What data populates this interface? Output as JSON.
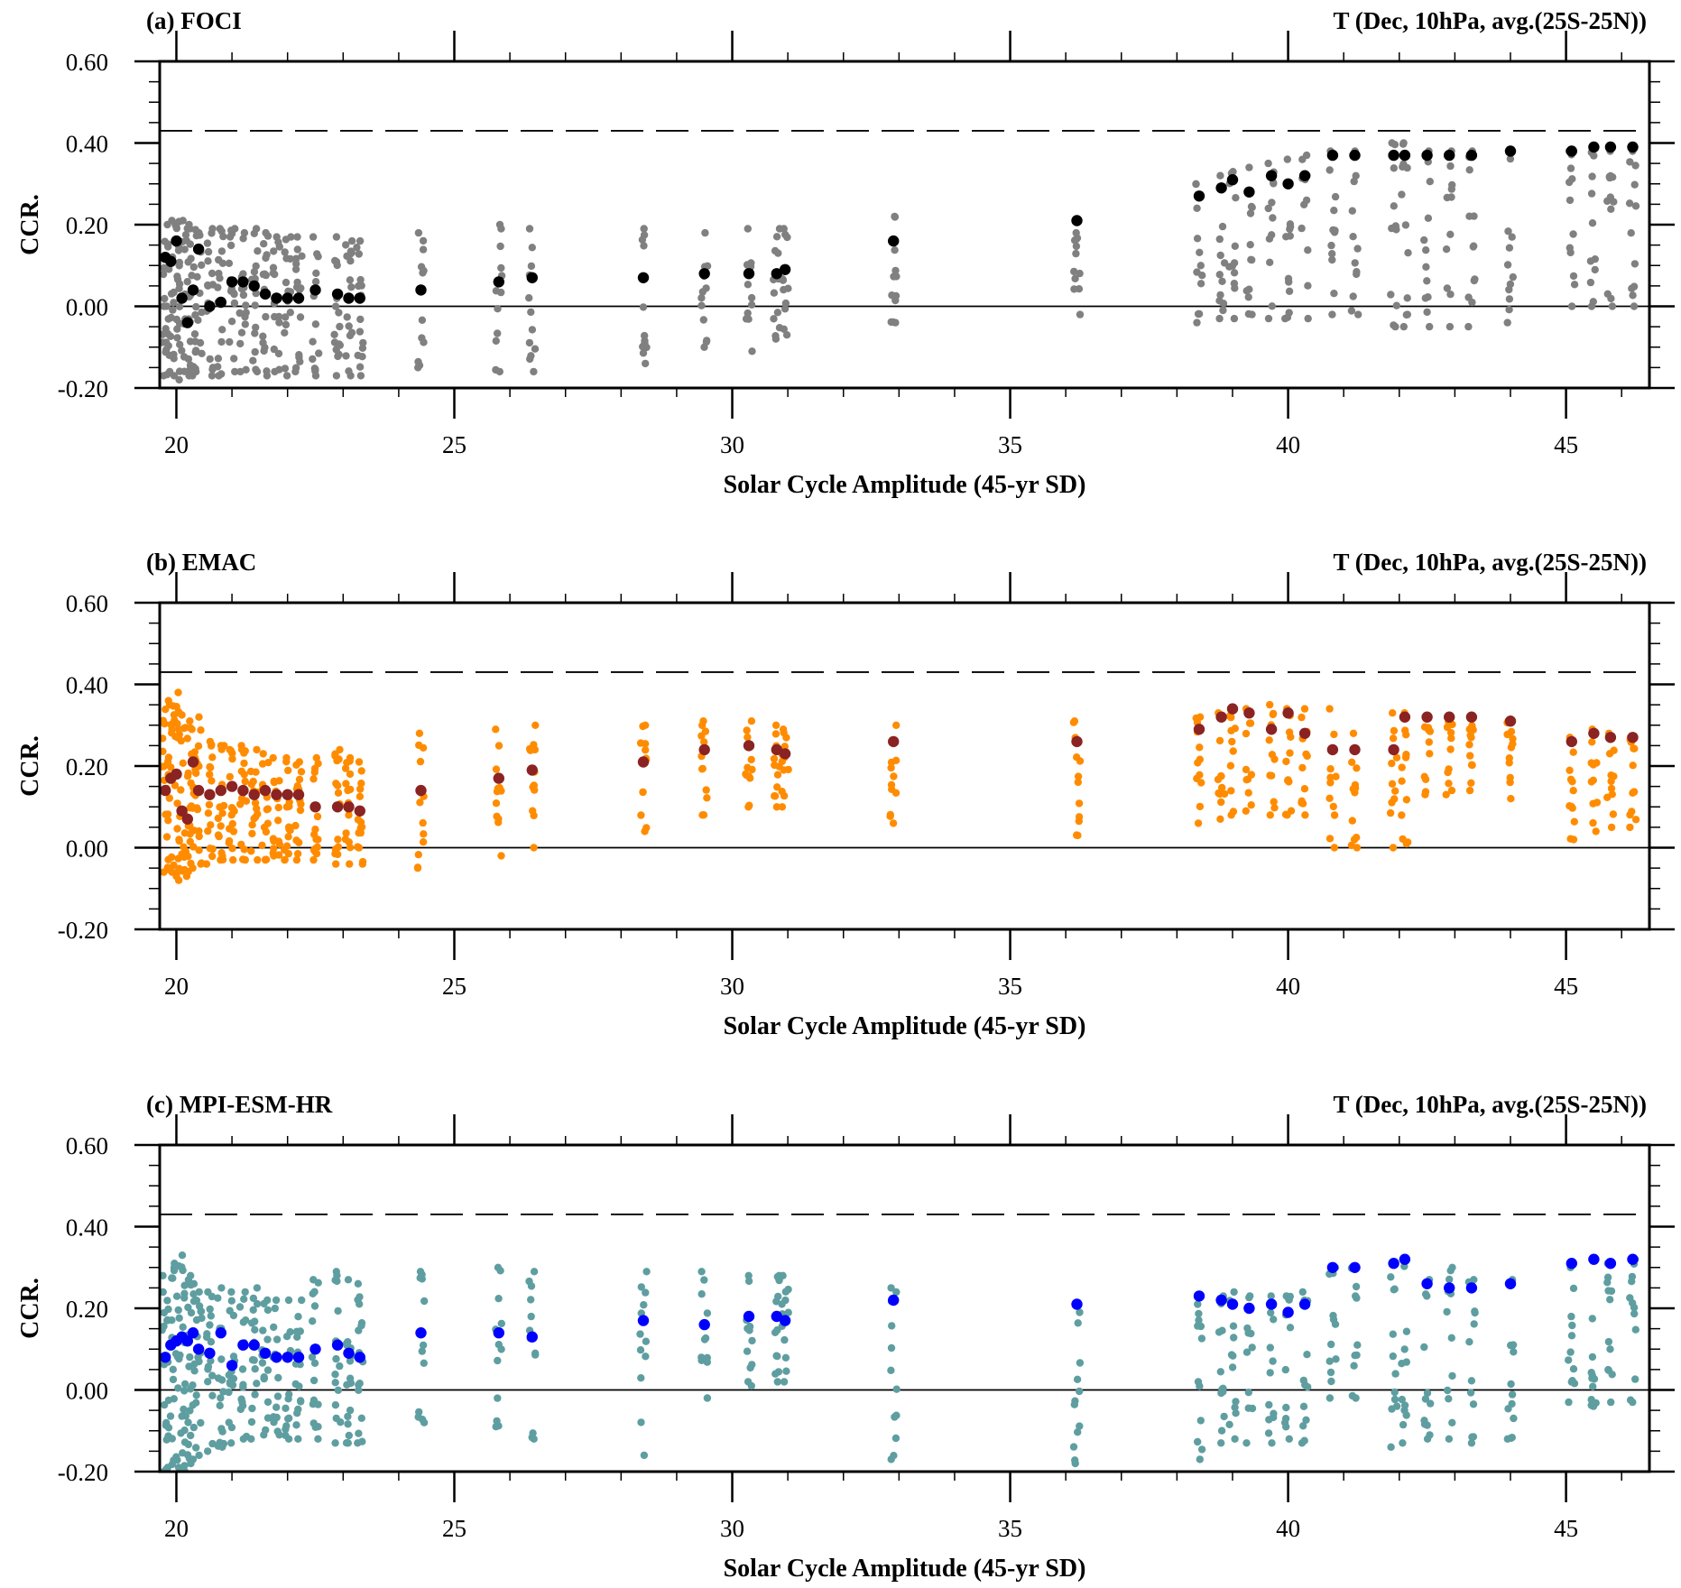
{
  "figure": {
    "shared_xlabel": "Solar Cycle Amplitude (45-yr SD)",
    "shared_ylabel": "CCR.",
    "variable_label": "T (Dec, 10hPa, avg.(25S-25N))",
    "significance_level": 0.43
  },
  "chart_data": [
    {
      "type": "scatter",
      "panel_label": "(a) FOCI",
      "title_right": "T (Dec, 10hPa, avg.(25S-25N))",
      "xlabel": "Solar Cycle Amplitude (45-yr SD)",
      "ylabel": "CCR.",
      "xlim": [
        19.7,
        46.5
      ],
      "ylim": [
        -0.2,
        0.6
      ],
      "xticks": [
        "20",
        "25",
        "30",
        "35",
        "40",
        "45"
      ],
      "yticks": [
        "-0.20",
        "0.00",
        "0.20",
        "0.40",
        "0.60"
      ],
      "significance_level": 0.43,
      "zero_line": true,
      "colors": {
        "members": "#808080",
        "mean": "#000000"
      },
      "members": {
        "x": [
          19.8,
          19.9,
          20.0,
          20.1,
          20.2,
          20.3,
          20.4,
          20.6,
          20.8,
          21.0,
          21.2,
          21.4,
          21.6,
          21.8,
          22.0,
          22.2,
          22.5,
          22.9,
          23.1,
          23.3,
          24.4,
          25.8,
          26.4,
          28.4,
          29.5,
          30.3,
          30.8,
          30.95,
          32.9,
          36.2,
          38.4,
          38.8,
          39.0,
          39.3,
          39.7,
          40.0,
          40.3,
          40.8,
          41.2,
          41.9,
          42.1,
          42.5,
          42.9,
          43.3,
          44.0,
          45.1,
          45.5,
          45.8,
          46.2
        ],
        "spread": [
          [
            -0.17,
            0.2
          ],
          [
            -0.16,
            0.21
          ],
          [
            -0.17,
            0.2
          ],
          [
            -0.18,
            0.21
          ],
          [
            -0.17,
            0.2
          ],
          [
            -0.17,
            0.19
          ],
          [
            -0.16,
            0.18
          ],
          [
            -0.17,
            0.19
          ],
          [
            -0.17,
            0.19
          ],
          [
            -0.16,
            0.19
          ],
          [
            -0.16,
            0.18
          ],
          [
            -0.16,
            0.19
          ],
          [
            -0.17,
            0.18
          ],
          [
            -0.16,
            0.17
          ],
          [
            -0.17,
            0.17
          ],
          [
            -0.16,
            0.17
          ],
          [
            -0.17,
            0.17
          ],
          [
            -0.17,
            0.17
          ],
          [
            -0.17,
            0.16
          ],
          [
            -0.17,
            0.16
          ],
          [
            -0.15,
            0.18
          ],
          [
            -0.16,
            0.2
          ],
          [
            -0.16,
            0.19
          ],
          [
            -0.14,
            0.19
          ],
          [
            -0.1,
            0.18
          ],
          [
            -0.11,
            0.19
          ],
          [
            -0.08,
            0.19
          ],
          [
            -0.07,
            0.19
          ],
          [
            -0.04,
            0.22
          ],
          [
            -0.02,
            0.18
          ],
          [
            -0.04,
            0.3
          ],
          [
            -0.03,
            0.32
          ],
          [
            -0.03,
            0.33
          ],
          [
            -0.02,
            0.34
          ],
          [
            -0.03,
            0.35
          ],
          [
            -0.03,
            0.36
          ],
          [
            -0.03,
            0.37
          ],
          [
            -0.02,
            0.38
          ],
          [
            -0.02,
            0.38
          ],
          [
            -0.05,
            0.4
          ],
          [
            -0.05,
            0.4
          ],
          [
            -0.05,
            0.38
          ],
          [
            -0.05,
            0.38
          ],
          [
            -0.05,
            0.38
          ],
          [
            -0.04,
            0.38
          ],
          [
            0.0,
            0.38
          ],
          [
            0.0,
            0.39
          ],
          [
            0.0,
            0.38
          ],
          [
            0.0,
            0.38
          ]
        ]
      },
      "ensemble_mean": {
        "x": [
          19.8,
          19.9,
          20.0,
          20.1,
          20.2,
          20.3,
          20.4,
          20.6,
          20.8,
          21.0,
          21.2,
          21.4,
          21.6,
          21.8,
          22.0,
          22.2,
          22.5,
          22.9,
          23.1,
          23.3,
          24.4,
          25.8,
          26.4,
          28.4,
          29.5,
          30.3,
          30.8,
          30.95,
          32.9,
          36.2,
          38.4,
          38.8,
          39.0,
          39.3,
          39.7,
          40.0,
          40.3,
          40.8,
          41.2,
          41.9,
          42.1,
          42.5,
          42.9,
          43.3,
          44.0,
          45.1,
          45.5,
          45.8,
          46.2
        ],
        "y": [
          0.12,
          0.11,
          0.16,
          0.02,
          -0.04,
          0.04,
          0.14,
          0.0,
          0.01,
          0.06,
          0.06,
          0.05,
          0.03,
          0.02,
          0.02,
          0.02,
          0.04,
          0.03,
          0.02,
          0.02,
          0.04,
          0.06,
          0.07,
          0.07,
          0.08,
          0.08,
          0.08,
          0.09,
          0.16,
          0.21,
          0.27,
          0.29,
          0.31,
          0.28,
          0.32,
          0.3,
          0.32,
          0.37,
          0.37,
          0.37,
          0.37,
          0.37,
          0.37,
          0.37,
          0.38,
          0.38,
          0.39,
          0.39,
          0.39
        ]
      }
    },
    {
      "type": "scatter",
      "panel_label": "(b) EMAC",
      "title_right": "T (Dec, 10hPa, avg.(25S-25N))",
      "xlabel": "Solar Cycle Amplitude (45-yr SD)",
      "ylabel": "CCR.",
      "xlim": [
        19.7,
        46.5
      ],
      "ylim": [
        -0.2,
        0.6
      ],
      "xticks": [
        "20",
        "25",
        "30",
        "35",
        "40",
        "45"
      ],
      "yticks": [
        "-0.20",
        "0.00",
        "0.20",
        "0.40",
        "0.60"
      ],
      "significance_level": 0.43,
      "zero_line": true,
      "colors": {
        "members": "#ff8c00",
        "mean": "#8b2323"
      },
      "members": {
        "x": [
          19.8,
          19.9,
          20.0,
          20.1,
          20.2,
          20.3,
          20.4,
          20.6,
          20.8,
          21.0,
          21.2,
          21.4,
          21.6,
          21.8,
          22.0,
          22.2,
          22.5,
          22.9,
          23.1,
          23.3,
          24.4,
          25.8,
          26.4,
          28.4,
          29.5,
          30.3,
          30.8,
          30.95,
          32.9,
          36.2,
          38.4,
          38.8,
          39.0,
          39.3,
          39.7,
          40.0,
          40.3,
          40.8,
          41.2,
          41.9,
          42.1,
          42.5,
          42.9,
          43.3,
          44.0,
          45.1,
          45.5,
          45.8,
          46.2
        ],
        "spread": [
          [
            -0.06,
            0.36
          ],
          [
            -0.06,
            0.35
          ],
          [
            -0.07,
            0.38
          ],
          [
            -0.08,
            0.33
          ],
          [
            -0.07,
            0.31
          ],
          [
            -0.05,
            0.29
          ],
          [
            -0.04,
            0.32
          ],
          [
            -0.04,
            0.26
          ],
          [
            -0.03,
            0.25
          ],
          [
            -0.03,
            0.24
          ],
          [
            -0.03,
            0.25
          ],
          [
            -0.03,
            0.24
          ],
          [
            -0.03,
            0.23
          ],
          [
            -0.02,
            0.22
          ],
          [
            -0.03,
            0.22
          ],
          [
            -0.03,
            0.21
          ],
          [
            -0.03,
            0.22
          ],
          [
            -0.04,
            0.24
          ],
          [
            -0.04,
            0.22
          ],
          [
            -0.04,
            0.21
          ],
          [
            -0.05,
            0.28
          ],
          [
            -0.02,
            0.29
          ],
          [
            0.0,
            0.3
          ],
          [
            0.04,
            0.3
          ],
          [
            0.08,
            0.31
          ],
          [
            0.1,
            0.31
          ],
          [
            0.1,
            0.3
          ],
          [
            0.1,
            0.29
          ],
          [
            0.06,
            0.3
          ],
          [
            0.03,
            0.31
          ],
          [
            0.06,
            0.32
          ],
          [
            0.07,
            0.33
          ],
          [
            0.08,
            0.34
          ],
          [
            0.09,
            0.34
          ],
          [
            0.08,
            0.35
          ],
          [
            0.08,
            0.34
          ],
          [
            0.08,
            0.34
          ],
          [
            0.0,
            0.34
          ],
          [
            0.0,
            0.28
          ],
          [
            0.0,
            0.33
          ],
          [
            0.01,
            0.33
          ],
          [
            0.13,
            0.32
          ],
          [
            0.13,
            0.32
          ],
          [
            0.14,
            0.32
          ],
          [
            0.12,
            0.31
          ],
          [
            0.02,
            0.27
          ],
          [
            0.04,
            0.29
          ],
          [
            0.05,
            0.28
          ],
          [
            0.05,
            0.27
          ]
        ]
      },
      "ensemble_mean": {
        "x": [
          19.8,
          19.9,
          20.0,
          20.1,
          20.2,
          20.3,
          20.4,
          20.6,
          20.8,
          21.0,
          21.2,
          21.4,
          21.6,
          21.8,
          22.0,
          22.2,
          22.5,
          22.9,
          23.1,
          23.3,
          24.4,
          25.8,
          26.4,
          28.4,
          29.5,
          30.3,
          30.8,
          30.95,
          32.9,
          36.2,
          38.4,
          38.8,
          39.0,
          39.3,
          39.7,
          40.0,
          40.3,
          40.8,
          41.2,
          41.9,
          42.1,
          42.5,
          42.9,
          43.3,
          44.0,
          45.1,
          45.5,
          45.8,
          46.2
        ],
        "y": [
          0.14,
          0.17,
          0.18,
          0.09,
          0.07,
          0.21,
          0.14,
          0.13,
          0.14,
          0.15,
          0.14,
          0.13,
          0.14,
          0.13,
          0.13,
          0.13,
          0.1,
          0.1,
          0.1,
          0.09,
          0.14,
          0.17,
          0.19,
          0.21,
          0.24,
          0.25,
          0.24,
          0.23,
          0.26,
          0.26,
          0.29,
          0.32,
          0.34,
          0.33,
          0.29,
          0.33,
          0.28,
          0.24,
          0.24,
          0.24,
          0.32,
          0.32,
          0.32,
          0.32,
          0.31,
          0.26,
          0.28,
          0.27,
          0.27
        ]
      }
    },
    {
      "type": "scatter",
      "panel_label": "(c) MPI-ESM-HR",
      "title_right": "T (Dec, 10hPa, avg.(25S-25N))",
      "xlabel": "Solar Cycle Amplitude (45-yr SD)",
      "ylabel": "CCR.",
      "xlim": [
        19.7,
        46.5
      ],
      "ylim": [
        -0.2,
        0.6
      ],
      "xticks": [
        "20",
        "25",
        "30",
        "35",
        "40",
        "45"
      ],
      "yticks": [
        "-0.20",
        "0.00",
        "0.20",
        "0.40",
        "0.60"
      ],
      "significance_level": 0.43,
      "zero_line": true,
      "colors": {
        "members": "#5f9ea0",
        "mean": "#0000ff"
      },
      "members": {
        "x": [
          19.8,
          19.9,
          20.0,
          20.1,
          20.2,
          20.3,
          20.4,
          20.6,
          20.8,
          21.0,
          21.2,
          21.4,
          21.6,
          21.8,
          22.0,
          22.2,
          22.5,
          22.9,
          23.1,
          23.3,
          24.4,
          25.8,
          26.4,
          28.4,
          29.5,
          30.3,
          30.8,
          30.95,
          32.9,
          36.2,
          38.4,
          38.8,
          39.0,
          39.3,
          39.7,
          40.0,
          40.3,
          40.8,
          41.2,
          41.9,
          42.1,
          42.5,
          42.9,
          43.3,
          44.0,
          45.1,
          45.5,
          45.8,
          46.2
        ],
        "spread": [
          [
            -0.2,
            0.28
          ],
          [
            -0.19,
            0.3
          ],
          [
            -0.19,
            0.31
          ],
          [
            -0.2,
            0.33
          ],
          [
            -0.18,
            0.28
          ],
          [
            -0.17,
            0.26
          ],
          [
            -0.16,
            0.24
          ],
          [
            -0.15,
            0.24
          ],
          [
            -0.14,
            0.25
          ],
          [
            -0.13,
            0.24
          ],
          [
            -0.12,
            0.24
          ],
          [
            -0.12,
            0.25
          ],
          [
            -0.11,
            0.22
          ],
          [
            -0.11,
            0.22
          ],
          [
            -0.12,
            0.22
          ],
          [
            -0.12,
            0.22
          ],
          [
            -0.12,
            0.27
          ],
          [
            -0.13,
            0.29
          ],
          [
            -0.13,
            0.27
          ],
          [
            -0.13,
            0.26
          ],
          [
            -0.08,
            0.29
          ],
          [
            -0.09,
            0.3
          ],
          [
            -0.12,
            0.29
          ],
          [
            -0.16,
            0.29
          ],
          [
            -0.02,
            0.29
          ],
          [
            0.01,
            0.28
          ],
          [
            0.02,
            0.28
          ],
          [
            0.02,
            0.28
          ],
          [
            -0.17,
            0.25
          ],
          [
            -0.18,
            0.19
          ],
          [
            -0.17,
            0.21
          ],
          [
            -0.13,
            0.23
          ],
          [
            -0.12,
            0.24
          ],
          [
            -0.13,
            0.23
          ],
          [
            -0.13,
            0.23
          ],
          [
            -0.12,
            0.23
          ],
          [
            -0.13,
            0.24
          ],
          [
            -0.02,
            0.3
          ],
          [
            -0.02,
            0.3
          ],
          [
            -0.14,
            0.31
          ],
          [
            -0.13,
            0.32
          ],
          [
            -0.12,
            0.27
          ],
          [
            -0.12,
            0.3
          ],
          [
            -0.13,
            0.27
          ],
          [
            -0.12,
            0.27
          ],
          [
            -0.03,
            0.3
          ],
          [
            -0.04,
            0.32
          ],
          [
            -0.03,
            0.31
          ],
          [
            -0.03,
            0.32
          ]
        ]
      },
      "ensemble_mean": {
        "x": [
          19.8,
          19.9,
          20.0,
          20.1,
          20.2,
          20.3,
          20.4,
          20.6,
          20.8,
          21.0,
          21.2,
          21.4,
          21.6,
          21.8,
          22.0,
          22.2,
          22.5,
          22.9,
          23.1,
          23.3,
          24.4,
          25.8,
          26.4,
          28.4,
          29.5,
          30.3,
          30.8,
          30.95,
          32.9,
          36.2,
          38.4,
          38.8,
          39.0,
          39.3,
          39.7,
          40.0,
          40.3,
          40.8,
          41.2,
          41.9,
          42.1,
          42.5,
          42.9,
          43.3,
          44.0,
          45.1,
          45.5,
          45.8,
          46.2
        ],
        "y": [
          0.08,
          0.11,
          0.12,
          0.13,
          0.12,
          0.14,
          0.1,
          0.09,
          0.14,
          0.06,
          0.11,
          0.11,
          0.09,
          0.08,
          0.08,
          0.08,
          0.1,
          0.11,
          0.09,
          0.08,
          0.14,
          0.14,
          0.13,
          0.17,
          0.16,
          0.18,
          0.18,
          0.17,
          0.22,
          0.21,
          0.23,
          0.22,
          0.21,
          0.2,
          0.21,
          0.19,
          0.21,
          0.3,
          0.3,
          0.31,
          0.32,
          0.26,
          0.25,
          0.25,
          0.26,
          0.31,
          0.32,
          0.31,
          0.32
        ]
      }
    }
  ]
}
